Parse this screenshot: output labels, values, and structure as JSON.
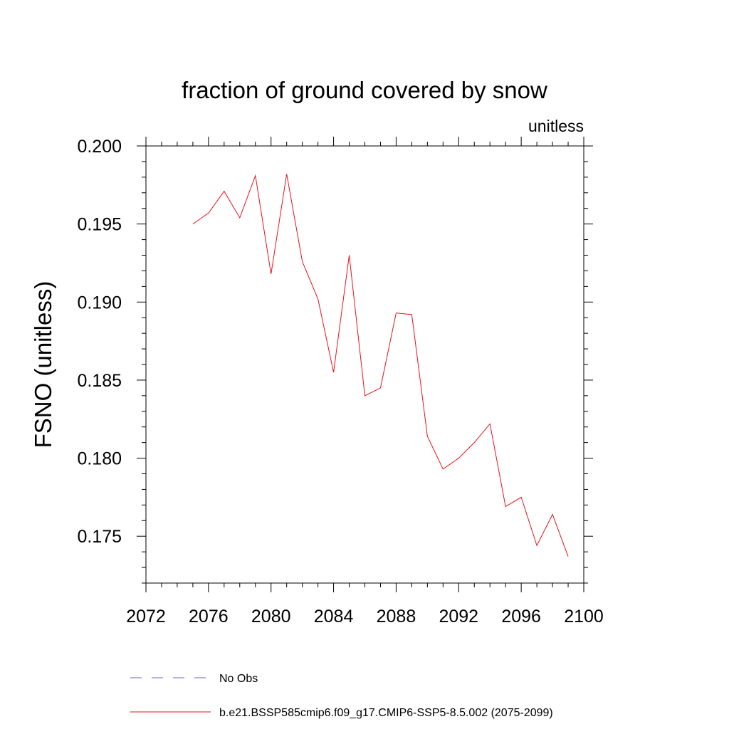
{
  "chart_data": {
    "type": "line",
    "title": "fraction of ground covered by snow",
    "units": "unitless",
    "ylabel": "FSNO  (unitless)",
    "xlabel": "",
    "xlim": [
      2072,
      2100
    ],
    "ylim": [
      0.172,
      0.2
    ],
    "x_ticks": [
      2072,
      2076,
      2080,
      2084,
      2088,
      2092,
      2096,
      2100
    ],
    "y_ticks": [
      "0.175",
      "0.180",
      "0.185",
      "0.190",
      "0.195",
      "0.200"
    ],
    "grid": false,
    "legend_position": "bottom",
    "series": [
      {
        "name": "No Obs",
        "color": "#6666cc",
        "dash": "dashed",
        "x": [],
        "y": []
      },
      {
        "name": "b.e21.BSSP585cmip6.f09_g17.CMIP6-SSP5-8.5.002 (2075-2099)",
        "color": "#e8121a",
        "dash": "solid",
        "x": [
          2075,
          2076,
          2077,
          2078,
          2079,
          2080,
          2081,
          2082,
          2083,
          2084,
          2085,
          2086,
          2087,
          2088,
          2089,
          2090,
          2091,
          2092,
          2093,
          2094,
          2095,
          2096,
          2097,
          2098,
          2099
        ],
        "y": [
          0.195,
          0.1957,
          0.1971,
          0.1954,
          0.1981,
          0.1918,
          0.1982,
          0.1926,
          0.1902,
          0.1855,
          0.193,
          0.184,
          0.1845,
          0.1893,
          0.1892,
          0.1814,
          0.1793,
          0.18,
          0.181,
          0.1822,
          0.1769,
          0.1775,
          0.1744,
          0.1764,
          0.1737
        ]
      }
    ]
  }
}
